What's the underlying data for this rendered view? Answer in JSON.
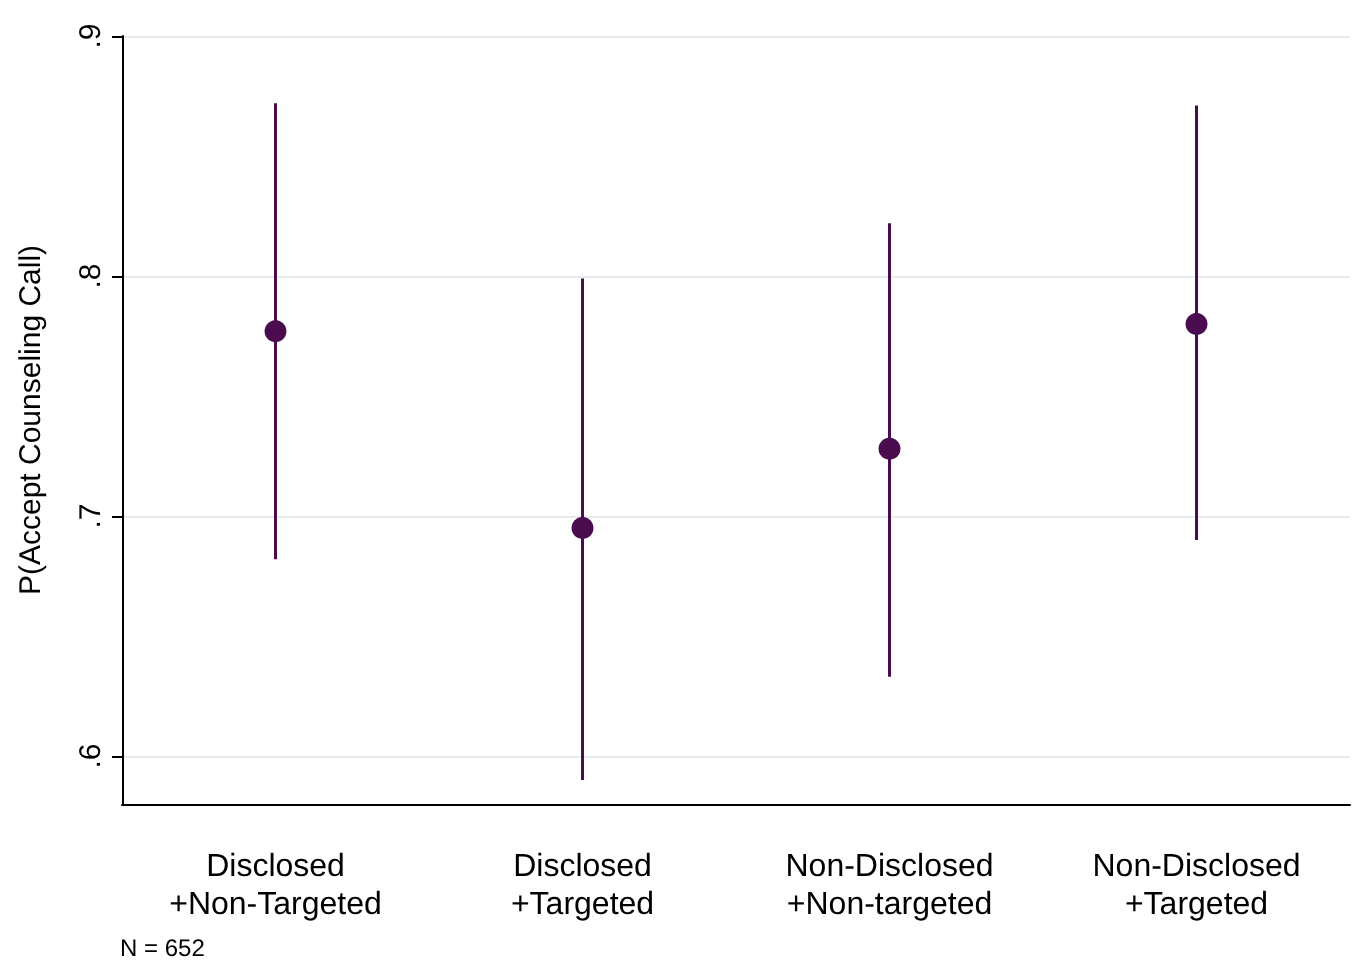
{
  "chart_data": {
    "type": "scatter",
    "ylabel": "P(Accept Counseling Call)",
    "categories": [
      "Disclosed\n+Non-Targeted",
      "Disclosed\n+Targeted",
      "Non-Disclosed\n+Non-targeted",
      "Non-Disclosed\n+Targeted"
    ],
    "series": [
      {
        "color": "#4b0c4f",
        "values": [
          0.777,
          0.695,
          0.728,
          0.78
        ],
        "errors": [
          [
            0.682,
            0.872
          ],
          [
            0.59,
            0.799
          ],
          [
            0.633,
            0.822
          ],
          [
            0.69,
            0.871
          ]
        ]
      }
    ],
    "ylim": [
      0.58,
      0.9
    ],
    "yticks": [
      {
        "value": 0.6,
        "label": ".6"
      },
      {
        "value": 0.7,
        "label": ".7"
      },
      {
        "value": 0.8,
        "label": ".8"
      },
      {
        "value": 0.9,
        "label": ".9"
      }
    ],
    "grid": "y",
    "marker": "circle",
    "annotations": [
      "N = 652"
    ]
  }
}
